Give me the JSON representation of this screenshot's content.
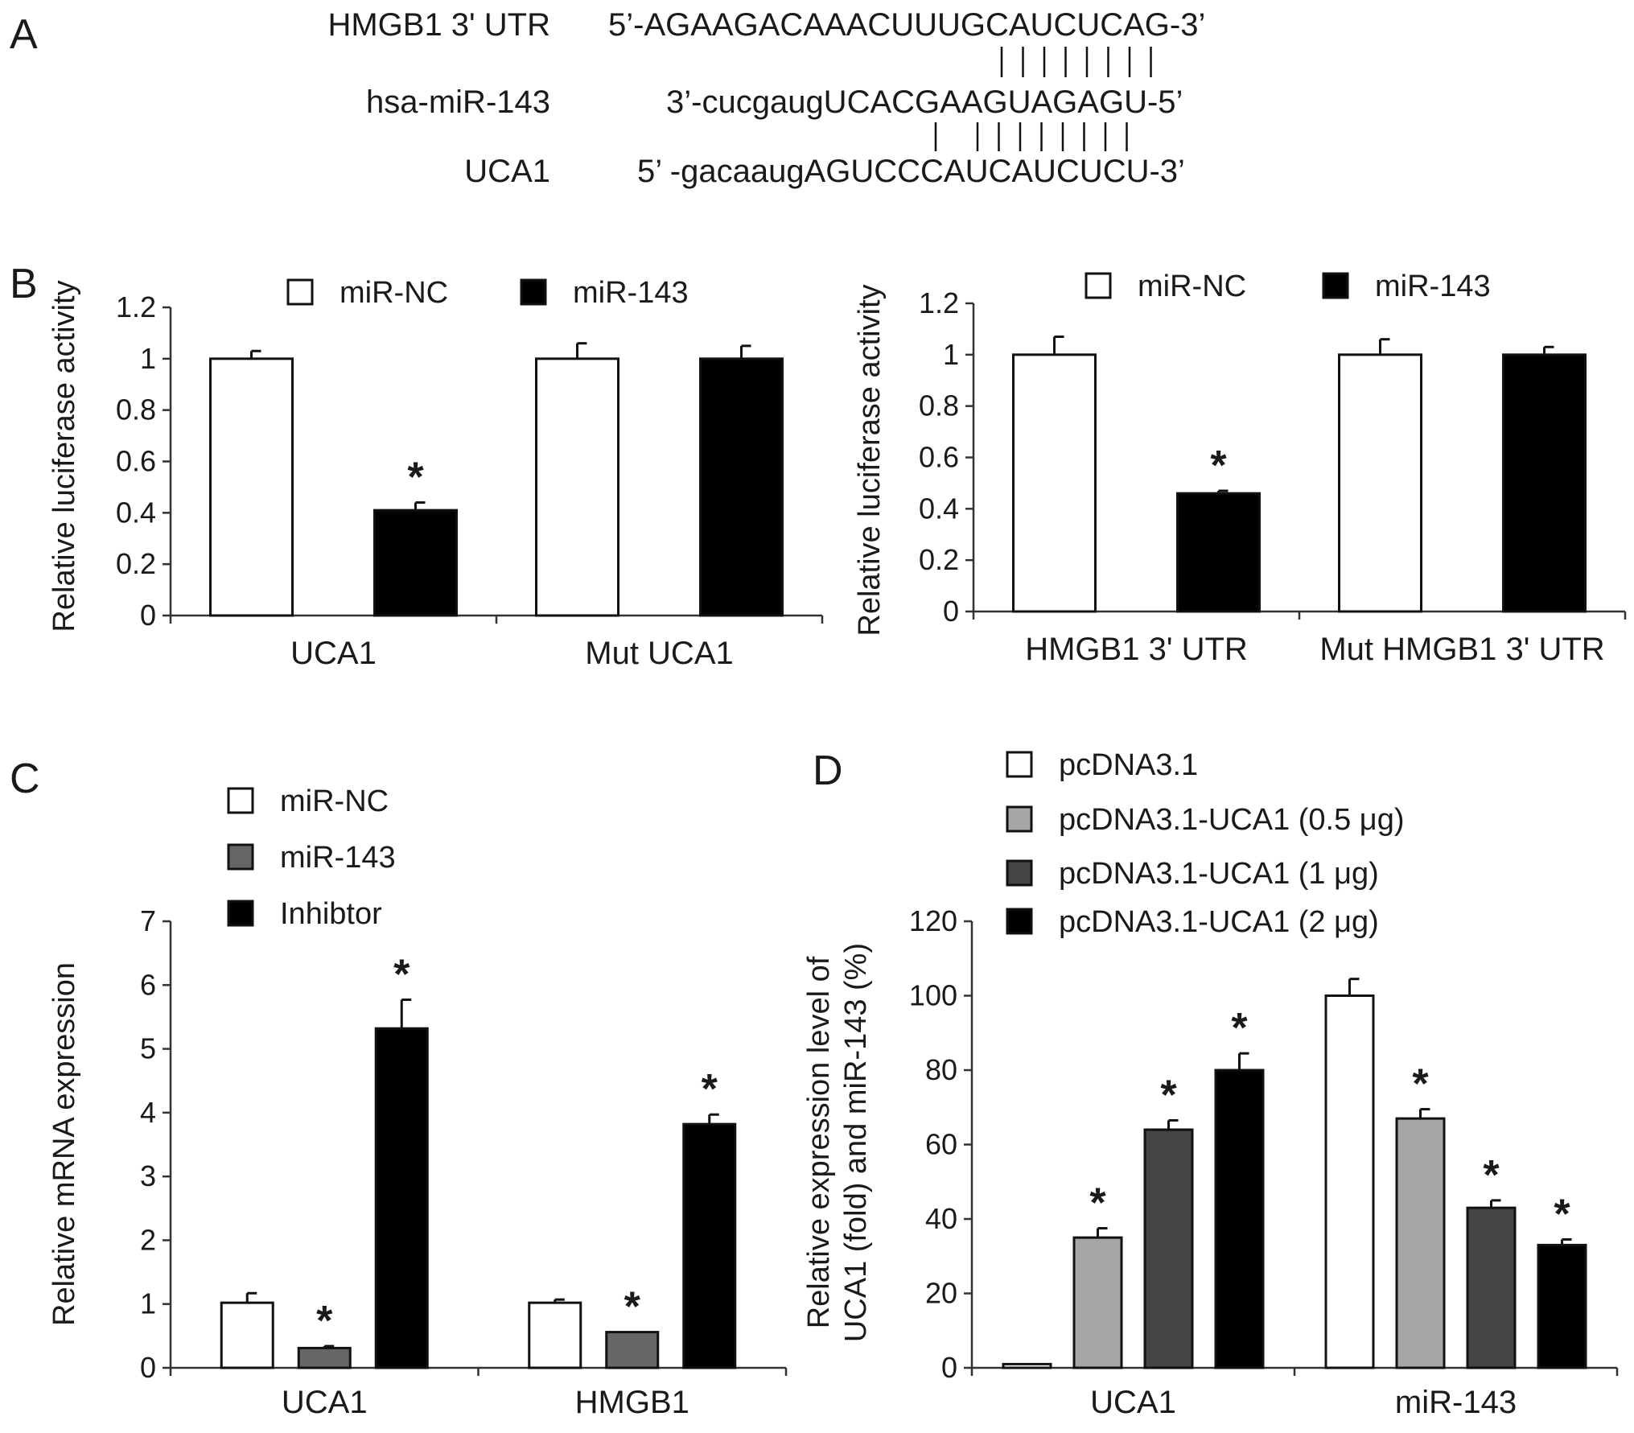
{
  "panel_a": {
    "letter": "A",
    "rows": [
      {
        "label": "HMGB1 3' UTR",
        "sequence": "5’-AGAAGACAAACUUUGCAUCUCAG-3’"
      },
      {
        "label": "hsa-miR-143",
        "sequence": "3’-cucgaugUCACGAAGUAGAGU-5’"
      },
      {
        "label": "UCA1",
        "sequence": "5’ -gacaaugAGUCCCAUCAUCUCU-3’"
      }
    ],
    "pairing_lines": [
      8,
      9
    ]
  },
  "chart_data": [
    {
      "panel": "B",
      "type": "bar",
      "ylabel": "Relative luciferase activity",
      "ylim": [
        0,
        1.2
      ],
      "yticks": [
        "0",
        "0.2",
        "0.4",
        "0.6",
        "0.8",
        "1",
        "1.2"
      ],
      "categories": [
        "UCA1",
        "Mut UCA1"
      ],
      "series": [
        {
          "name": "miR-NC",
          "color": "#ffffff",
          "values": [
            1.0,
            1.0
          ],
          "errors": [
            0.03,
            0.06
          ],
          "sig": [
            false,
            false
          ]
        },
        {
          "name": "miR-143",
          "color": "#000000",
          "values": [
            0.41,
            1.0
          ],
          "errors": [
            0.03,
            0.05
          ],
          "sig": [
            true,
            false
          ]
        }
      ],
      "legend": "top"
    },
    {
      "panel": "",
      "type": "bar",
      "ylabel": "Relative luciferase activity",
      "ylim": [
        0,
        1.2
      ],
      "yticks": [
        "0",
        "0.2",
        "0.4",
        "0.6",
        "0.8",
        "1",
        "1.2"
      ],
      "categories": [
        "HMGB1 3' UTR",
        "Mut HMGB1 3' UTR"
      ],
      "series": [
        {
          "name": "miR-NC",
          "color": "#ffffff",
          "values": [
            1.0,
            1.0
          ],
          "errors": [
            0.07,
            0.06
          ],
          "sig": [
            false,
            false
          ]
        },
        {
          "name": "miR-143",
          "color": "#000000",
          "values": [
            0.46,
            1.0
          ],
          "errors": [
            0.01,
            0.03
          ],
          "sig": [
            true,
            false
          ]
        }
      ],
      "legend": "top"
    },
    {
      "panel": "C",
      "type": "bar",
      "ylabel": "Relative mRNA expression",
      "ylim": [
        0,
        7
      ],
      "yticks": [
        "0",
        "1",
        "2",
        "3",
        "4",
        "5",
        "6",
        "7"
      ],
      "categories": [
        "UCA1",
        "HMGB1"
      ],
      "series": [
        {
          "name": "miR-NC",
          "color": "#ffffff",
          "values": [
            1.02,
            1.02
          ],
          "errors": [
            0.15,
            0.05
          ],
          "sig": [
            false,
            false
          ]
        },
        {
          "name": "miR-143",
          "color": "#666666",
          "values": [
            0.31,
            0.56
          ],
          "errors": [
            0.03,
            0.0
          ],
          "sig": [
            true,
            true
          ]
        },
        {
          "name": "Inhibtor",
          "color": "#000000",
          "values": [
            5.32,
            3.82
          ],
          "errors": [
            0.45,
            0.15
          ],
          "sig": [
            true,
            true
          ]
        }
      ],
      "legend": "top-left"
    },
    {
      "panel": "D",
      "type": "bar",
      "ylabel": "Relative  expression level of UCA1 (fold) and miR-143 (%)",
      "ylabel_lines": [
        "Relative  expression level of",
        "UCA1 (fold) and miR-143 (%)"
      ],
      "ylim": [
        0,
        120
      ],
      "yticks": [
        "0",
        "20",
        "40",
        "60",
        "80",
        "100",
        "120"
      ],
      "categories": [
        "UCA1",
        "miR-143"
      ],
      "series": [
        {
          "name": "pcDNA3.1",
          "color": "#ffffff",
          "values": [
            1,
            100
          ],
          "errors": [
            0,
            4.5
          ],
          "sig": [
            false,
            false
          ]
        },
        {
          "name": "pcDNA3.1-UCA1  (0.5 μg)",
          "color": "#a6a6a6",
          "values": [
            35,
            67
          ],
          "errors": [
            2.5,
            2.5
          ],
          "sig": [
            true,
            true
          ]
        },
        {
          "name": "pcDNA3.1-UCA1  (1 μg)",
          "color": "#444444",
          "values": [
            64,
            43
          ],
          "errors": [
            2.5,
            2
          ],
          "sig": [
            true,
            true
          ]
        },
        {
          "name": "pcDNA3.1-UCA1  (2 μg)",
          "color": "#000000",
          "values": [
            80,
            33
          ],
          "errors": [
            4.5,
            1.5
          ],
          "sig": [
            true,
            true
          ]
        }
      ],
      "legend": "top-left"
    }
  ],
  "sig_marker": "*"
}
